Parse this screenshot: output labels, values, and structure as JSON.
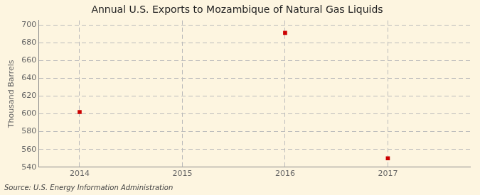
{
  "chart_data": {
    "type": "scatter",
    "title": "Annual U.S. Exports to Mozambique of Natural Gas Liquids",
    "ylabel": "Thousand Barrels",
    "source": "Source: U.S. Energy Information Administration",
    "x": [
      2014,
      2016,
      2017
    ],
    "values": [
      602,
      691,
      550
    ],
    "color": "#cc0000",
    "marker": "square",
    "xlim": [
      2013.6,
      2017.8
    ],
    "ylim": [
      540,
      705
    ],
    "xticks": [
      2014,
      2015,
      2016,
      2017
    ],
    "yticks": [
      540,
      560,
      580,
      600,
      620,
      640,
      660,
      680,
      700
    ],
    "grid": true
  }
}
